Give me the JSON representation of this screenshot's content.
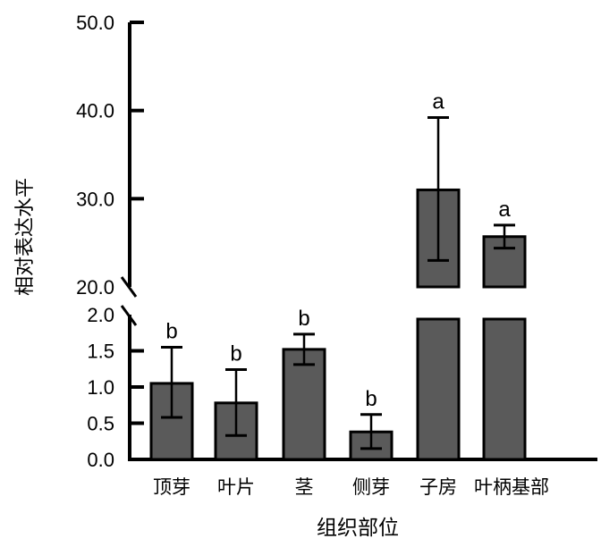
{
  "chart_data": {
    "type": "bar",
    "title": "",
    "xlabel": "组织部位",
    "ylabel": "相对表达水平",
    "categories": [
      "顶芽",
      "叶片",
      "茎",
      "侧芽",
      "子房",
      "叶柄基部"
    ],
    "values": [
      1.05,
      0.78,
      1.52,
      0.38,
      31.0,
      25.7
    ],
    "error_low": [
      0.58,
      0.33,
      1.31,
      0.15,
      23.0,
      24.4
    ],
    "error_high": [
      1.55,
      1.24,
      1.73,
      0.62,
      39.2,
      27.0
    ],
    "significance": [
      "b",
      "b",
      "b",
      "b",
      "a",
      "a"
    ],
    "y_axis_break": [
      2.0,
      20.0
    ],
    "ylim_lower": [
      0,
      2.0
    ],
    "ylim_upper": [
      20.0,
      50.0
    ],
    "yticks_lower": [
      "0.0",
      "0.5",
      "1.0",
      "1.5",
      "2.0"
    ],
    "yticks_upper": [
      "20.0",
      "30.0",
      "40.0",
      "50.0"
    ],
    "bar_color": "#5a5a5a",
    "grid": false
  }
}
